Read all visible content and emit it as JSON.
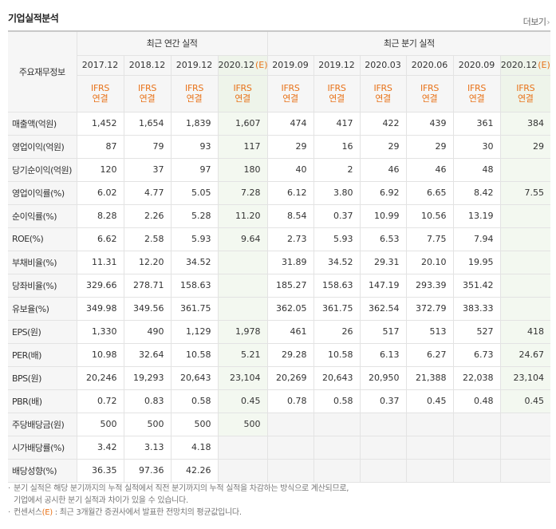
{
  "header": {
    "title": "기업실적분석",
    "more_label": "더보기",
    "more_icon": "chevron-right-icon"
  },
  "table": {
    "row_header_title": "주요재무정보",
    "group_annual": "최근 연간 실적",
    "group_quarter": "최근 분기 실적",
    "periods": [
      {
        "label": "2017.12",
        "estimate": false
      },
      {
        "label": "2018.12",
        "estimate": false
      },
      {
        "label": "2019.12",
        "estimate": false
      },
      {
        "label": "2020.12",
        "estimate": true,
        "estimate_mark": "(E)"
      },
      {
        "label": "2019.09",
        "estimate": false
      },
      {
        "label": "2019.12",
        "estimate": false
      },
      {
        "label": "2020.03",
        "estimate": false
      },
      {
        "label": "2020.06",
        "estimate": false
      },
      {
        "label": "2020.09",
        "estimate": false
      },
      {
        "label": "2020.12",
        "estimate": true,
        "estimate_mark": "(E)"
      }
    ],
    "ifrs_line1": "IFRS",
    "ifrs_line2": "연결",
    "rows": [
      {
        "label": "매출액(억원)",
        "values": [
          "1,452",
          "1,654",
          "1,839",
          "1,607",
          "474",
          "417",
          "422",
          "439",
          "361",
          "384"
        ]
      },
      {
        "label": "영업이익(억원)",
        "values": [
          "87",
          "79",
          "93",
          "117",
          "29",
          "16",
          "29",
          "29",
          "30",
          "29"
        ]
      },
      {
        "label": "당기순이익(억원)",
        "values": [
          "120",
          "37",
          "97",
          "180",
          "40",
          "2",
          "46",
          "46",
          "48",
          ""
        ]
      },
      {
        "label": "영업이익률(%)",
        "values": [
          "6.02",
          "4.77",
          "5.05",
          "7.28",
          "6.12",
          "3.80",
          "6.92",
          "6.65",
          "8.42",
          "7.55"
        ]
      },
      {
        "label": "순이익률(%)",
        "values": [
          "8.28",
          "2.26",
          "5.28",
          "11.20",
          "8.54",
          "0.37",
          "10.99",
          "10.56",
          "13.19",
          ""
        ]
      },
      {
        "label": "ROE(%)",
        "values": [
          "6.62",
          "2.58",
          "5.93",
          "9.64",
          "2.73",
          "5.93",
          "6.53",
          "7.75",
          "7.94",
          ""
        ]
      },
      {
        "label": "부채비율(%)",
        "values": [
          "11.31",
          "12.20",
          "34.52",
          "",
          "31.89",
          "34.52",
          "29.31",
          "20.10",
          "19.95",
          ""
        ]
      },
      {
        "label": "당좌비율(%)",
        "values": [
          "329.66",
          "278.71",
          "158.63",
          "",
          "185.27",
          "158.63",
          "147.19",
          "293.39",
          "351.42",
          ""
        ]
      },
      {
        "label": "유보율(%)",
        "values": [
          "349.98",
          "349.56",
          "361.75",
          "",
          "362.05",
          "361.75",
          "362.54",
          "372.79",
          "383.33",
          ""
        ]
      },
      {
        "label": "EPS(원)",
        "values": [
          "1,330",
          "490",
          "1,129",
          "1,978",
          "461",
          "26",
          "517",
          "513",
          "527",
          "418"
        ]
      },
      {
        "label": "PER(배)",
        "values": [
          "10.98",
          "32.64",
          "10.58",
          "5.21",
          "29.28",
          "10.58",
          "6.13",
          "6.27",
          "6.73",
          "24.67"
        ]
      },
      {
        "label": "BPS(원)",
        "values": [
          "20,246",
          "19,293",
          "20,643",
          "23,104",
          "20,269",
          "20,643",
          "20,950",
          "21,388",
          "22,038",
          "23,104"
        ]
      },
      {
        "label": "PBR(배)",
        "values": [
          "0.72",
          "0.83",
          "0.58",
          "0.45",
          "0.78",
          "0.58",
          "0.37",
          "0.45",
          "0.48",
          "0.45"
        ]
      },
      {
        "label": "주당배당금(원)",
        "values": [
          "500",
          "500",
          "500",
          "500",
          "",
          "",
          "",
          "",
          "",
          ""
        ]
      },
      {
        "label": "시가배당률(%)",
        "values": [
          "3.42",
          "3.13",
          "4.18",
          "",
          "",
          "",
          "",
          "",
          "",
          ""
        ]
      },
      {
        "label": "배당성향(%)",
        "values": [
          "36.35",
          "97.36",
          "42.26",
          "",
          "",
          "",
          "",
          "",
          "",
          ""
        ]
      }
    ]
  },
  "notes": {
    "line1": "분기 실적은 해당 분기까지의 누적 실적에서 직전 분기까지의 누적 실적을 차감하는 방식으로 계산되므로,",
    "line2": "기업에서 공시한 분기 실적과 차이가 있을 수 있습니다.",
    "line3_prefix": "컨센서스",
    "line3_mark": "(E)",
    "line3_suffix": " : 최근 3개월간 증권사에서 발표한 전망치의 평균값입니다."
  },
  "colors": {
    "accent": "#e8731a",
    "estimate_bg": "#f3f8f0",
    "header_bg": "#f6f6f6"
  }
}
